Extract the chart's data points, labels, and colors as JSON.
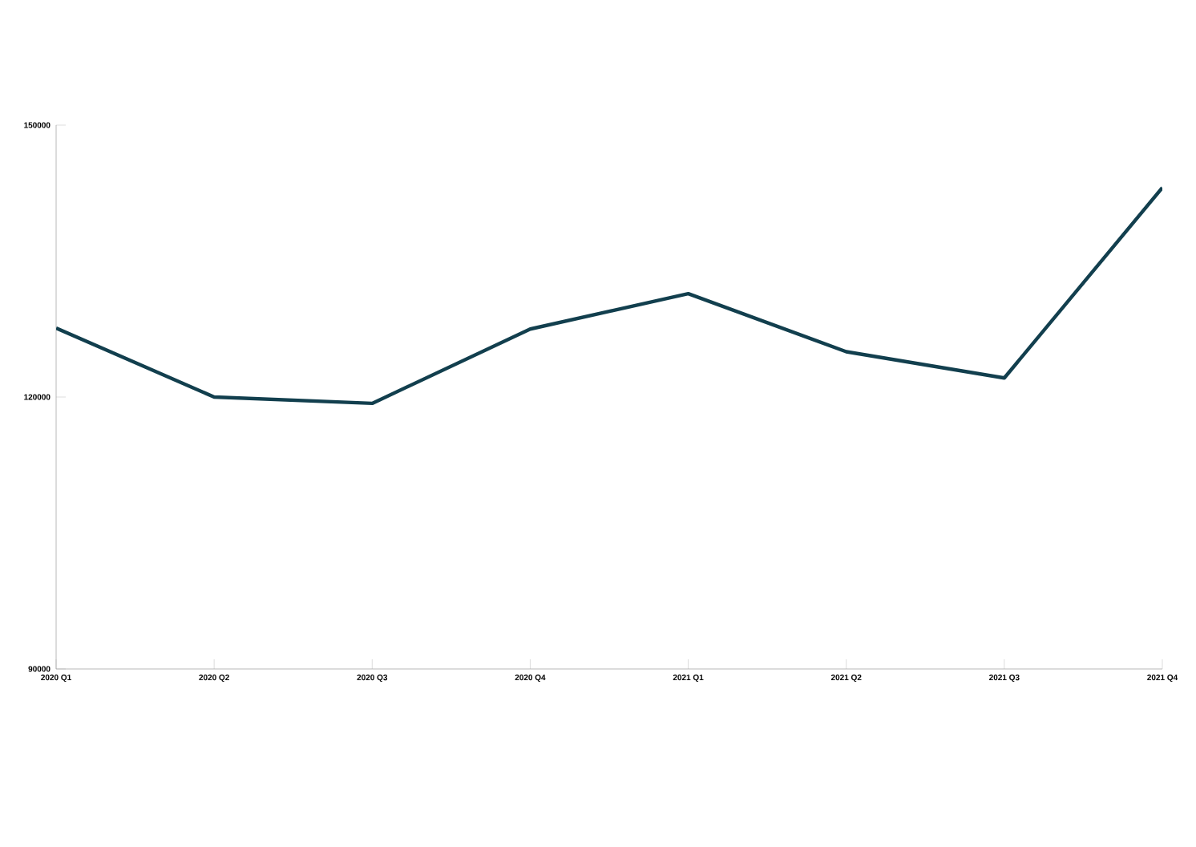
{
  "chart_data": {
    "type": "line",
    "categories": [
      "2020 Q1",
      "2020 Q2",
      "2020 Q3",
      "2020 Q4",
      "2021 Q1",
      "2021 Q2",
      "2021 Q3",
      "2021 Q4"
    ],
    "series": [
      {
        "color": "#123f4e",
        "values": [
          127600,
          120000,
          119300,
          127500,
          131400,
          125000,
          122100,
          143100
        ]
      }
    ],
    "ylim": [
      90000,
      150000
    ],
    "yticks": [
      90000,
      120000,
      150000
    ],
    "grid": false,
    "marker": "none",
    "line_style": "solid"
  }
}
